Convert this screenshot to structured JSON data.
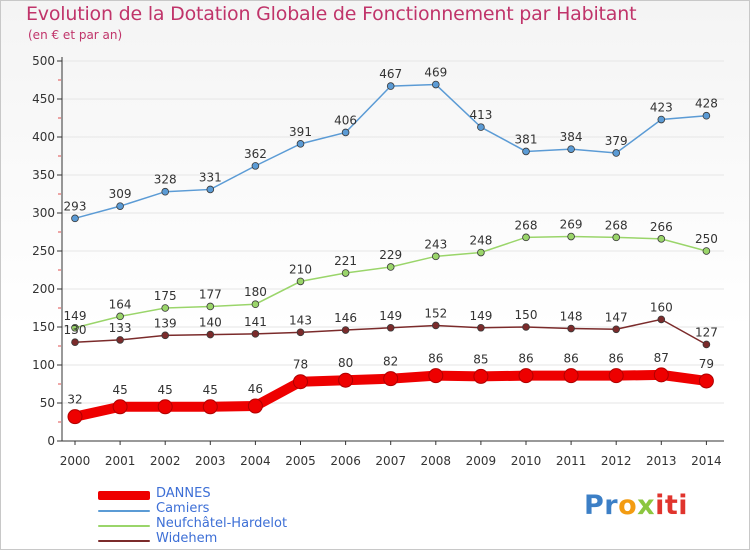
{
  "title": "Evolution de la Dotation Globale de Fonctionnement par Habitant",
  "subtitle": "(en € et par an)",
  "logo": {
    "text": "Proxiti",
    "parts": [
      "Pr",
      "o",
      "x",
      "iti"
    ]
  },
  "colors": {
    "title": "#c0346a",
    "legend_text": "#3d6fd6",
    "axis": "#333333",
    "grid": "#e6e6e6"
  },
  "chart_data": {
    "type": "line",
    "x": [
      2000,
      2001,
      2002,
      2003,
      2004,
      2005,
      2006,
      2007,
      2008,
      2009,
      2010,
      2011,
      2012,
      2013,
      2014
    ],
    "ylim": [
      0,
      500
    ],
    "yticks": [
      0,
      50,
      100,
      150,
      200,
      250,
      300,
      350,
      400,
      450,
      500
    ],
    "grid": true,
    "legend_position": "bottom-left",
    "series": [
      {
        "name": "DANNES",
        "color": "#ee0000",
        "emphasis": true,
        "values": [
          32,
          45,
          45,
          45,
          46,
          78,
          80,
          82,
          86,
          85,
          86,
          86,
          86,
          87,
          79
        ]
      },
      {
        "name": "Camiers",
        "color": "#5b9bd5",
        "values": [
          293,
          309,
          328,
          331,
          362,
          391,
          406,
          467,
          469,
          413,
          381,
          384,
          379,
          423,
          428
        ]
      },
      {
        "name": "Neufchâtel-Hardelot",
        "color": "#9ad56a",
        "values": [
          149,
          164,
          175,
          177,
          180,
          210,
          221,
          229,
          243,
          248,
          268,
          269,
          268,
          266,
          250
        ]
      },
      {
        "name": "Widehem",
        "color": "#7b2b2b",
        "values": [
          130,
          133,
          139,
          140,
          141,
          143,
          146,
          149,
          152,
          149,
          150,
          148,
          147,
          160,
          127
        ]
      }
    ]
  }
}
